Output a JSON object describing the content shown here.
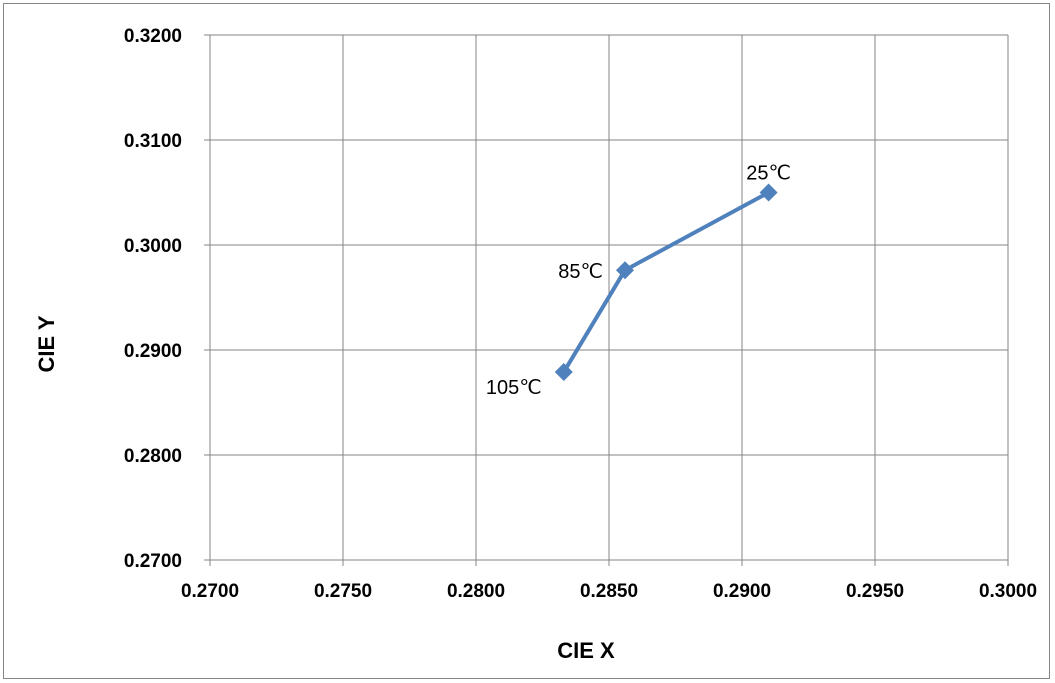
{
  "chart_data": {
    "type": "scatter",
    "title": "",
    "xlabel": "CIE X",
    "ylabel": "CIE Y",
    "xlim": [
      0.27,
      0.3
    ],
    "ylim": [
      0.27,
      0.32
    ],
    "x_ticks": [
      "0.2700",
      "0.2750",
      "0.2800",
      "0.2850",
      "0.2900",
      "0.2950",
      "0.3000"
    ],
    "y_ticks": [
      "0.2700",
      "0.2800",
      "0.2900",
      "0.3000",
      "0.3100",
      "0.3200"
    ],
    "grid": true,
    "legend": "none",
    "series": [
      {
        "color": "#4f81bd",
        "marker": "diamond",
        "points": [
          {
            "x": 0.2833,
            "y": 0.2879,
            "label": "105℃"
          },
          {
            "x": 0.2856,
            "y": 0.2976,
            "label": "85℃"
          },
          {
            "x": 0.291,
            "y": 0.305,
            "label": "25℃"
          }
        ]
      }
    ]
  }
}
